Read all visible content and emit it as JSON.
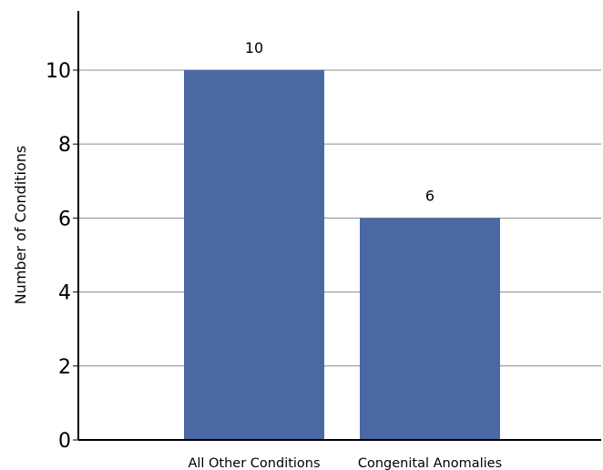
{
  "chart_data": {
    "type": "bar",
    "categories": [
      "All Other Conditions",
      "Congenital Anomalies"
    ],
    "values": [
      10,
      6
    ],
    "data_labels": [
      "10",
      "6"
    ],
    "ylabel": "Number of Conditions",
    "xlabel": "",
    "ylim": [
      0,
      11.6
    ],
    "yticks": [
      0,
      2,
      4,
      6,
      8,
      10
    ],
    "ytick_labels": [
      "0",
      "2",
      "4",
      "6",
      "8",
      "10"
    ],
    "grid": true,
    "legend": "none",
    "bar_color": "#4a68a2",
    "grid_color": "#8c8c8c"
  }
}
